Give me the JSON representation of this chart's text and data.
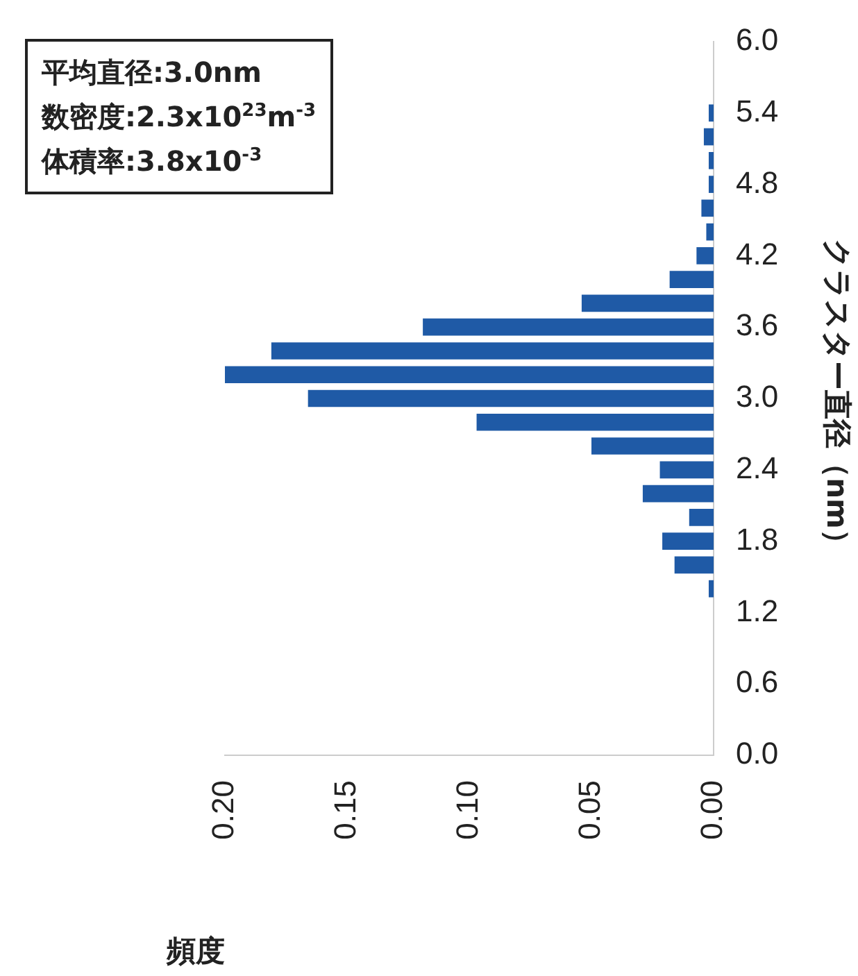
{
  "chart_data": {
    "type": "histogram",
    "orientation": "horizontal",
    "ylabel": "クラスター直径（nm）",
    "xlabel": "頻度",
    "bins": [
      1.3,
      1.5,
      1.7,
      1.9,
      2.1,
      2.3,
      2.5,
      2.7,
      2.9,
      3.1,
      3.3,
      3.5,
      3.7,
      3.9,
      4.1,
      4.3,
      4.5,
      4.7,
      4.9,
      5.1,
      5.3,
      5.5
    ],
    "values": [
      0.002,
      0.016,
      0.021,
      0.01,
      0.029,
      0.022,
      0.05,
      0.097,
      0.166,
      0.2,
      0.181,
      0.119,
      0.054,
      0.018,
      0.007,
      0.003,
      0.005,
      0.002,
      0.002,
      0.004,
      0.002
    ],
    "color": "#1f5aa6",
    "ylim": [
      0,
      6
    ],
    "yticks": [
      {
        "value": 0,
        "label": "0.0"
      },
      0.6,
      1.2,
      1.8,
      2.4,
      {
        "value": 3,
        "label": "3.0"
      },
      3.6,
      4.2,
      4.8,
      5.4,
      {
        "value": 6,
        "label": "6.0"
      }
    ],
    "xlim": [
      0.2,
      0
    ],
    "xticks": [
      {
        "value": 0,
        "label": "0.00"
      },
      {
        "value": 0.05,
        "label": "0.05"
      },
      {
        "value": 0.1,
        "label": "0.10"
      },
      {
        "value": 0.15,
        "label": "0.15"
      },
      {
        "value": 0.2,
        "label": "0.20"
      }
    ],
    "annotations": [
      "平均直径:3.0nm",
      "数密度:2.3x10$^{23}$m$^{-3}$",
      "体積率:3.8x10$^{-3}$"
    ],
    "grid": false,
    "legend": false
  }
}
